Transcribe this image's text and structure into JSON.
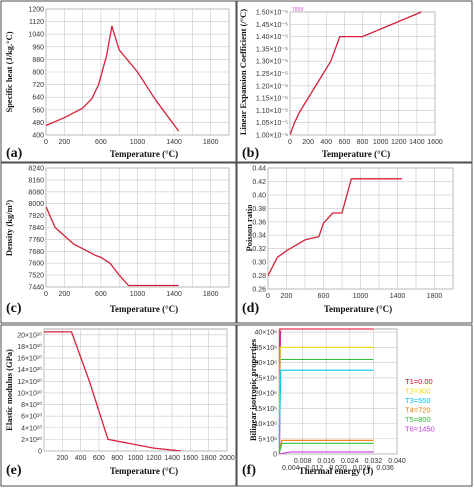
{
  "chart_data": [
    {
      "panel": "(a)",
      "type": "line",
      "xlabel": "Temperature (°C)",
      "ylabel": "Specific heat (J/kg.°C)",
      "xlim": [
        0,
        2000
      ],
      "ylim": [
        400,
        1200
      ],
      "xticks": [
        0,
        200,
        400,
        600,
        800,
        1000,
        1200,
        1400,
        1600,
        1800,
        2000
      ],
      "xtick_labels": [
        "0",
        "200",
        "",
        "600",
        "",
        "1000",
        "",
        "1400",
        "",
        "1800",
        ""
      ],
      "yticks": [
        400,
        480,
        560,
        640,
        720,
        800,
        880,
        960,
        1040,
        1120,
        1200
      ],
      "ytick_labels": [
        "400",
        "480",
        "560",
        "640",
        "720",
        "800",
        "880",
        "960",
        "1040",
        "1120",
        "1200"
      ],
      "grid": true,
      "color": "#d6213a",
      "x": [
        0,
        200,
        400,
        500,
        575,
        660,
        720,
        800,
        1000,
        1200,
        1450
      ],
      "y": [
        460,
        510,
        570,
        630,
        720,
        900,
        1090,
        940,
        800,
        620,
        425
      ]
    },
    {
      "panel": "(b)",
      "type": "line",
      "xlabel": "Temperature (°C)",
      "ylabel": "Linear Expansion Coefficient (/°C)",
      "xlim": [
        0,
        1600
      ],
      "ylim": [
        1e-05,
        1.5e-05
      ],
      "xticks": [
        0,
        200,
        400,
        600,
        800,
        1000,
        1200,
        1400,
        1600
      ],
      "xtick_labels": [
        "0",
        "200",
        "400",
        "600",
        "800",
        "1000",
        "1200",
        "1400",
        "1600"
      ],
      "yticks": [
        1e-05,
        1.05e-05,
        1.1e-05,
        1.15e-05,
        1.2e-05,
        1.25e-05,
        1.3e-05,
        1.35e-05,
        1.4e-05,
        1.45e-05,
        1.5e-05
      ],
      "ytick_labels": [
        "1.00×10⁻⁵",
        "1.05×10⁻⁵",
        "1.10×10⁻⁵",
        "1.15×10⁻⁵",
        "1.20×10⁻⁵",
        "1.25×10⁻⁵",
        "1.30×10⁻⁵",
        "1.35×10⁻⁵",
        "1.40×10⁻⁵",
        "1.45×10⁻⁵",
        "1.50×10⁻⁵"
      ],
      "grid": true,
      "color": "#d6213a",
      "annotation": "7888",
      "x": [
        0,
        50,
        100,
        200,
        350,
        450,
        550,
        800,
        1450
      ],
      "y": [
        1e-05,
        1.05e-05,
        1.09e-05,
        1.15e-05,
        1.24e-05,
        1.3e-05,
        1.4e-05,
        1.4e-05,
        1.5e-05
      ]
    },
    {
      "panel": "(c)",
      "type": "line",
      "xlabel": "Temperature (°C)",
      "ylabel": "Density (kg/m³)",
      "xlim": [
        0,
        2000
      ],
      "ylim": [
        7440,
        8240
      ],
      "xticks": [
        0,
        200,
        400,
        600,
        800,
        1000,
        1200,
        1400,
        1600,
        1800,
        2000
      ],
      "xtick_labels": [
        "0",
        "200",
        "",
        "600",
        "",
        "1000",
        "",
        "1400",
        "",
        "1800",
        ""
      ],
      "yticks": [
        7440,
        7520,
        7600,
        7680,
        7760,
        7840,
        7920,
        8000,
        8080,
        8160,
        8240
      ],
      "ytick_labels": [
        "7440",
        "7520",
        "7600",
        "7680",
        "7760",
        "7840",
        "7920",
        "8000",
        "8080",
        "8160",
        "8240"
      ],
      "grid": true,
      "color": "#d6213a",
      "x": [
        0,
        100,
        300,
        550,
        600,
        700,
        800,
        900,
        1450
      ],
      "y": [
        7980,
        7840,
        7730,
        7650,
        7640,
        7600,
        7520,
        7450,
        7450
      ]
    },
    {
      "panel": "(d)",
      "type": "line",
      "xlabel": "Temperature (°C)",
      "ylabel": "Poisson ratio",
      "xlim": [
        0,
        2000
      ],
      "ylim": [
        0.26,
        0.44
      ],
      "xticks": [
        0,
        200,
        400,
        600,
        800,
        1000,
        1200,
        1400,
        1600,
        1800,
        2000
      ],
      "xtick_labels": [
        "0",
        "200",
        "",
        "600",
        "",
        "1000",
        "",
        "1400",
        "",
        "1800",
        ""
      ],
      "yticks": [
        0.26,
        0.28,
        0.3,
        0.32,
        0.34,
        0.36,
        0.38,
        0.4,
        0.42,
        0.44
      ],
      "ytick_labels": [
        "0.26",
        "0.28",
        "0.30",
        "0.32",
        "0.34",
        "0.36",
        "0.38",
        "0.40",
        "0.42",
        "0.44"
      ],
      "grid": true,
      "color": "#d6213a",
      "x": [
        0,
        100,
        200,
        400,
        550,
        600,
        700,
        800,
        900,
        1450
      ],
      "y": [
        0.28,
        0.307,
        0.317,
        0.333,
        0.338,
        0.358,
        0.373,
        0.373,
        0.424,
        0.424
      ]
    },
    {
      "panel": "(e)",
      "type": "line",
      "xlabel": "Temperature (°C)",
      "ylabel": "Elastic modulus (GPa)",
      "xlim": [
        0,
        2000
      ],
      "ylim": [
        0,
        210000000000.0
      ],
      "xticks": [
        0,
        200,
        400,
        600,
        800,
        1000,
        1200,
        1400,
        1600,
        1800,
        2000
      ],
      "xtick_labels": [
        "",
        "200",
        "400",
        "600",
        "800",
        "1000",
        "1200",
        "1400",
        "1600",
        "1800",
        "2000"
      ],
      "yticks": [
        0,
        20000000000.0,
        40000000000.0,
        60000000000.0,
        80000000000.0,
        100000000000.0,
        120000000000.0,
        140000000000.0,
        160000000000.0,
        180000000000.0,
        200000000000.0
      ],
      "ytick_labels": [
        "0",
        "2×10¹⁰",
        "4×10¹⁰",
        "6×10¹⁰",
        "8×10¹⁰",
        "10×10¹⁰",
        "12×10¹⁰",
        "14×10¹⁰",
        "16×10¹⁰",
        "18×10¹⁰",
        "20×10¹⁰"
      ],
      "grid": true,
      "color": "#d6213a",
      "x": [
        0,
        300,
        500,
        700,
        1200,
        1500
      ],
      "y": [
        205000000000.0,
        205000000000.0,
        118000000000.0,
        20000000000.0,
        5000000000.0,
        0
      ]
    },
    {
      "panel": "(f)",
      "type": "line",
      "xlabel": "Thermal energy (J)",
      "ylabel": "Bilinear isotropic properties",
      "xlim": [
        0,
        0.04
      ],
      "ylim": [
        0,
        41000000.0
      ],
      "xticks_major": [
        0,
        0.008,
        0.016,
        0.024,
        0.032,
        0.04
      ],
      "xtick_labels_major": [
        "",
        "0.008",
        "0.016",
        "0.024",
        "0.032",
        "0.040"
      ],
      "xticks_minor": [
        0.004,
        0.012,
        0.02,
        0.028,
        0.036
      ],
      "xtick_labels_minor": [
        "0.004",
        "0.012",
        "0.020",
        "0.028",
        "0.036"
      ],
      "yticks": [
        0,
        5000000.0,
        10000000.0,
        15000000.0,
        20000000.0,
        25000000.0,
        30000000.0,
        35000000.0,
        40000000.0
      ],
      "ytick_labels": [
        "0",
        "5×10⁶",
        "10×10⁶",
        "15×10⁶",
        "20×10⁶",
        "25×10⁶",
        "30×10⁶",
        "35×10⁶",
        "40×10⁶"
      ],
      "grid": true,
      "legend_placement": "right",
      "series": [
        {
          "name": "T1=0.00",
          "color": "#e8002a",
          "x": [
            0,
            0.0003,
            0.032
          ],
          "y": [
            0,
            41000000.0,
            41000000.0
          ]
        },
        {
          "name": "T2=300",
          "color": "#f0e000",
          "x": [
            0,
            0.0004,
            0.032
          ],
          "y": [
            0,
            35000000.0,
            35000000.0
          ]
        },
        {
          "name": "T3=550",
          "color": "#00c8f0",
          "x": [
            0,
            0.0006,
            0.032
          ],
          "y": [
            0,
            27500000.0,
            27500000.0
          ]
        },
        {
          "name": "T4=720",
          "color": "#f07800",
          "x": [
            0,
            0.0009,
            0.032
          ],
          "y": [
            0,
            4500000.0,
            4500000.0
          ]
        },
        {
          "name": "T5=800",
          "color": "#30c040",
          "x": [
            0,
            0.001,
            0.032
          ],
          "y": [
            0,
            3500000.0,
            3500000.0
          ]
        },
        {
          "name": "T6=1450",
          "color": "#c040e0",
          "x": [
            0,
            0.004,
            0.032
          ],
          "y": [
            0,
            700000.0,
            700000.0
          ]
        }
      ],
      "extra_lines": [
        {
          "color": "#30c040",
          "x": [
            0.0004,
            0.032
          ],
          "y": [
            31000000.0,
            31000000.0
          ]
        },
        {
          "color": "#c040e0",
          "x": [
            0.0002,
            0.0005,
            0.001
          ],
          "y": [
            0,
            40000000.0,
            40000000.0
          ]
        }
      ]
    }
  ]
}
